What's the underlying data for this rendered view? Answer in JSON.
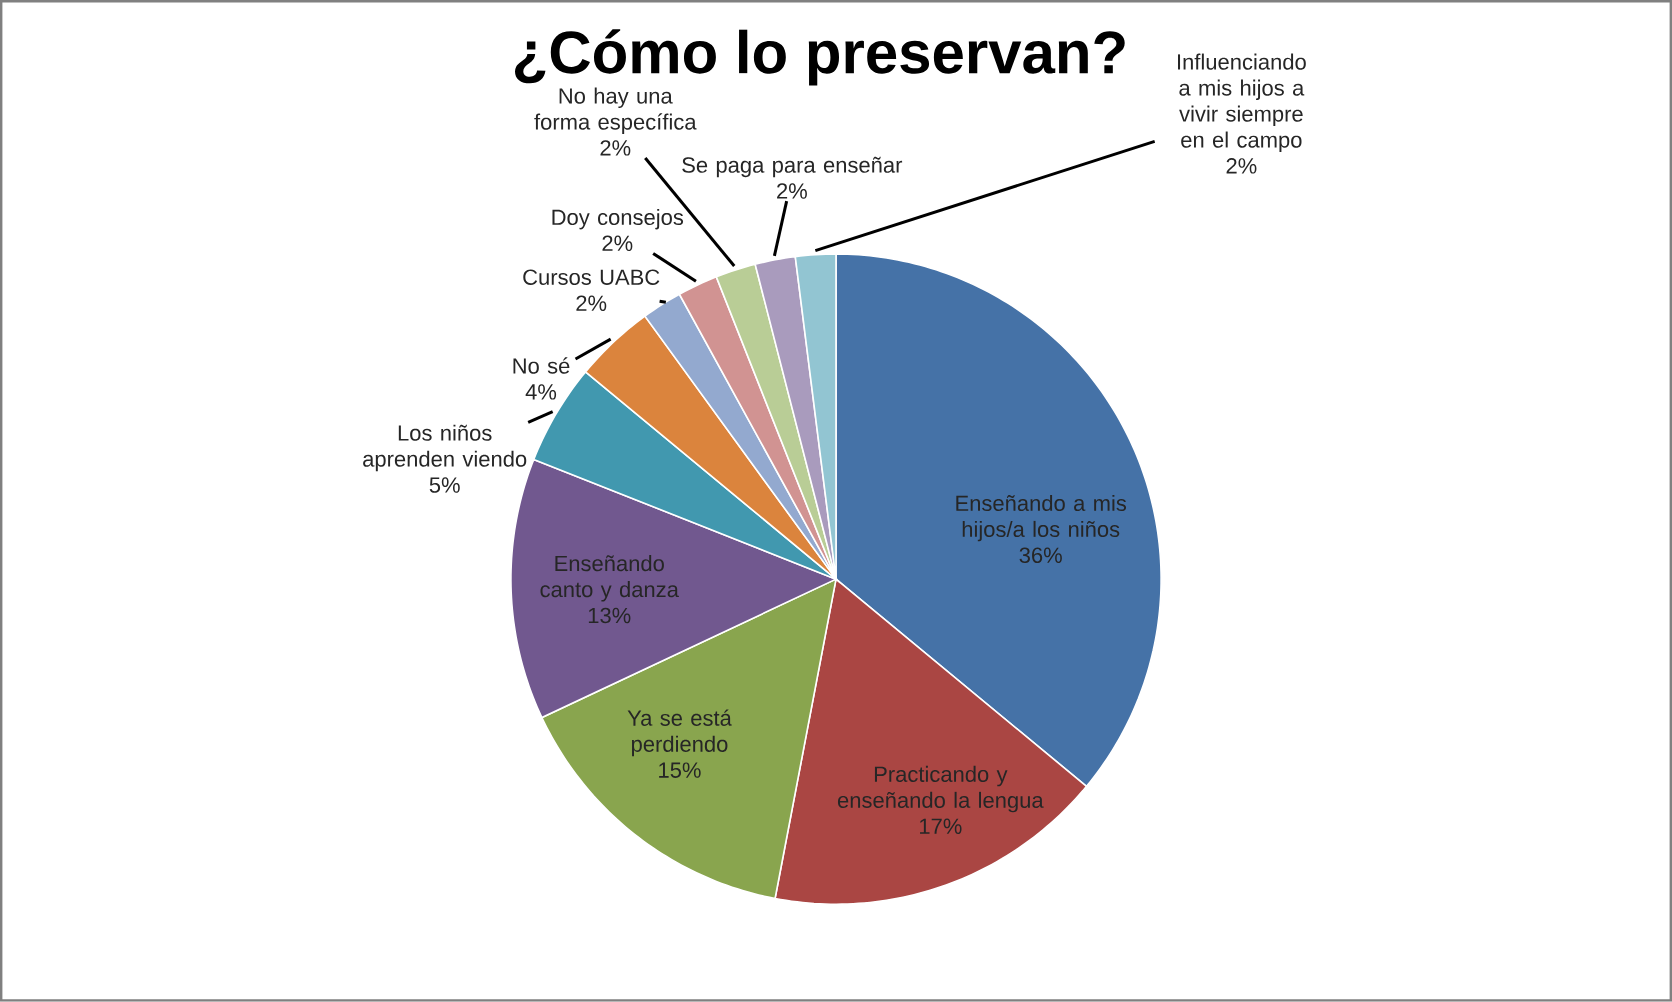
{
  "chart_data": {
    "type": "pie",
    "title": "¿Cómo lo preservan?",
    "categories": [
      "Enseñando a mis hijos/a los niños",
      "Practicando y enseñando la lengua",
      "Ya se está perdiendo",
      "Enseñando canto y danza",
      "Los niños aprenden viendo",
      "No sé",
      "Cursos UABC",
      "Doy consejos",
      "No hay una forma específica",
      "Se paga para enseñar",
      "Influenciando a mis hijos a vivir siempre en el campo"
    ],
    "values": [
      36,
      17,
      15,
      13,
      5,
      4,
      2,
      2,
      2,
      2,
      2
    ],
    "value_labels": [
      "36%",
      "17%",
      "15%",
      "13%",
      "5%",
      "4%",
      "2%",
      "2%",
      "2%",
      "2%",
      "2%"
    ],
    "colors": [
      "#4572a7",
      "#aa4643",
      "#89a54e",
      "#71588f",
      "#4198af",
      "#db843d",
      "#93a9cf",
      "#d19392",
      "#b9cd96",
      "#a99bbd",
      "#92c5d2"
    ]
  }
}
